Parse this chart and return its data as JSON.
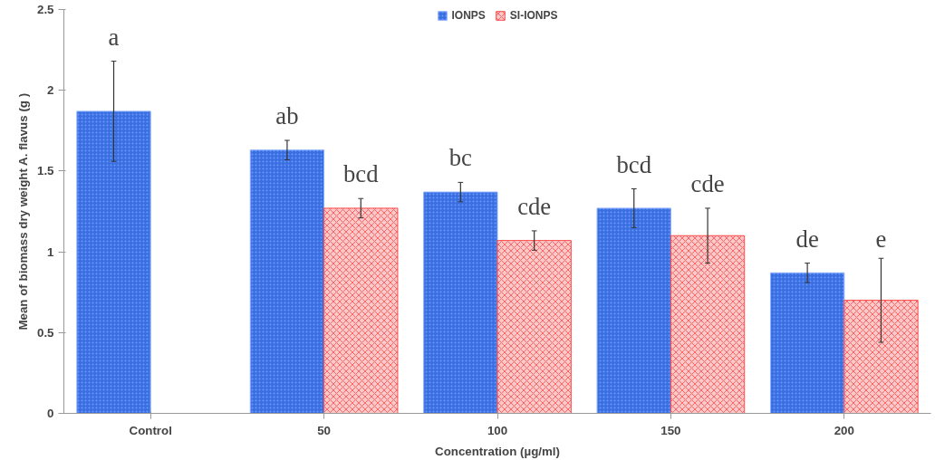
{
  "chart_data": {
    "type": "bar",
    "xlabel": "Concentration (µg/ml)",
    "ylabel": "Mean of biomass dry weight A. flavus (g )",
    "categories": [
      "Control",
      "50",
      "100",
      "150",
      "200"
    ],
    "series": [
      {
        "name": "IONPS",
        "color": "#3a6fe0",
        "values": [
          1.87,
          1.63,
          1.37,
          1.27,
          0.87
        ],
        "errors": [
          0.31,
          0.06,
          0.06,
          0.12,
          0.06
        ],
        "value_labels": [
          "a",
          "ab",
          "bc",
          "bcd",
          "de"
        ]
      },
      {
        "name": "SI-IONPS",
        "color": "#ff4a4a",
        "values": [
          null,
          1.27,
          1.07,
          1.1,
          0.7
        ],
        "errors": [
          null,
          0.06,
          0.06,
          0.17,
          0.26
        ],
        "value_labels": [
          null,
          "bcd",
          "cde",
          "cde",
          "e"
        ]
      }
    ],
    "ylim": [
      0,
      2.5
    ],
    "yticks": [
      0,
      0.5,
      1,
      1.5,
      2,
      2.5
    ],
    "grid": false,
    "legend": "top"
  }
}
